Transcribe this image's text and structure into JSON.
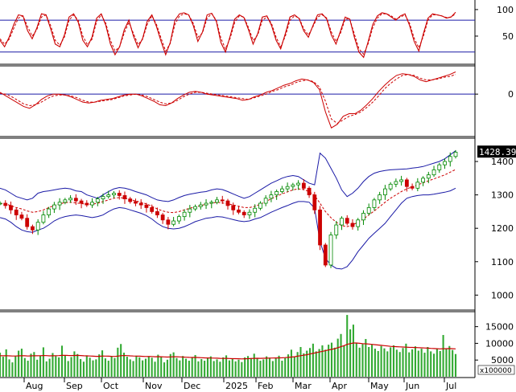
{
  "chart_data": [
    {
      "panel": "oscillator-1",
      "type": "line",
      "y_ticks": [
        "100",
        "50"
      ],
      "y_tick_values": [
        100,
        50
      ],
      "ylim": [
        0,
        115
      ],
      "reference_levels": [
        80,
        20
      ],
      "series": [
        {
          "style": "solid",
          "color": "#cc0000",
          "values": [
            42,
            30,
            48,
            72,
            90,
            88,
            60,
            45,
            65,
            92,
            90,
            64,
            35,
            30,
            52,
            86,
            92,
            76,
            42,
            30,
            48,
            84,
            92,
            70,
            35,
            15,
            30,
            62,
            80,
            50,
            28,
            46,
            78,
            90,
            68,
            40,
            15,
            38,
            80,
            92,
            94,
            90,
            70,
            40,
            58,
            90,
            93,
            78,
            38,
            20,
            50,
            82,
            90,
            85,
            62,
            35,
            55,
            86,
            88,
            70,
            42,
            26,
            55,
            86,
            90,
            83,
            60,
            48,
            70,
            90,
            92,
            82,
            52,
            35,
            60,
            86,
            82,
            48,
            20,
            10,
            40,
            72,
            88,
            94,
            92,
            86,
            80,
            88,
            92,
            70,
            40,
            22,
            55,
            84,
            92,
            90,
            88,
            84,
            86,
            95
          ]
        },
        {
          "style": "dashed",
          "color": "#cc0000",
          "values": [
            45,
            35,
            44,
            65,
            84,
            88,
            68,
            50,
            62,
            86,
            90,
            70,
            42,
            33,
            48,
            80,
            90,
            80,
            50,
            34,
            44,
            78,
            90,
            74,
            42,
            22,
            30,
            56,
            76,
            55,
            34,
            44,
            72,
            88,
            72,
            46,
            22,
            36,
            72,
            88,
            92,
            90,
            74,
            48,
            56,
            84,
            92,
            80,
            46,
            26,
            46,
            76,
            88,
            86,
            66,
            42,
            52,
            80,
            86,
            74,
            48,
            30,
            50,
            80,
            88,
            84,
            64,
            52,
            68,
            86,
            90,
            84,
            58,
            40,
            56,
            82,
            82,
            54,
            26,
            16,
            36,
            66,
            84,
            92,
            92,
            88,
            82,
            86,
            90,
            74,
            46,
            28,
            50,
            80,
            90,
            90,
            88,
            85,
            86,
            92
          ]
        }
      ]
    },
    {
      "panel": "oscillator-2",
      "type": "line",
      "y_ticks": [
        "0"
      ],
      "y_tick_values": [
        0
      ],
      "ylim": [
        -46,
        30
      ],
      "series": [
        {
          "style": "solid",
          "color": "#cc0000",
          "values": [
            2,
            -2,
            -6,
            -10,
            -14,
            -16,
            -12,
            -6,
            -2,
            0,
            0,
            -1,
            -3,
            -6,
            -9,
            -10,
            -9,
            -7,
            -6,
            -5,
            -3,
            -1,
            0,
            0,
            -2,
            -5,
            -8,
            -12,
            -13,
            -10,
            -5,
            -1,
            2,
            3,
            2,
            0,
            -1,
            -2,
            -3,
            -4,
            -5,
            -7,
            -6,
            -3,
            -1,
            2,
            4,
            7,
            10,
            12,
            15,
            17,
            16,
            13,
            5,
            -20,
            -38,
            -34,
            -25,
            -22,
            -22,
            -18,
            -12,
            -5,
            3,
            10,
            16,
            21,
            23,
            22,
            20,
            16,
            14,
            16,
            18,
            20,
            22,
            25
          ]
        },
        {
          "style": "dashed",
          "color": "#cc0000",
          "values": [
            1,
            0,
            -3,
            -7,
            -11,
            -13,
            -12,
            -9,
            -5,
            -2,
            -1,
            -1,
            -2,
            -4,
            -7,
            -9,
            -9,
            -8,
            -7,
            -6,
            -4,
            -2,
            -1,
            0,
            -1,
            -3,
            -6,
            -9,
            -11,
            -10,
            -7,
            -3,
            0,
            2,
            2,
            1,
            0,
            -1,
            -2,
            -3,
            -4,
            -5,
            -6,
            -4,
            -2,
            0,
            3,
            5,
            8,
            10,
            13,
            15,
            16,
            14,
            8,
            -8,
            -28,
            -33,
            -29,
            -25,
            -23,
            -20,
            -15,
            -9,
            -2,
            6,
            12,
            17,
            21,
            22,
            21,
            18,
            16,
            16,
            17,
            19,
            20,
            22
          ]
        }
      ]
    },
    {
      "panel": "price",
      "type": "candlestick",
      "y_ticks": [
        "1400",
        "1300",
        "1200",
        "1100",
        "1000"
      ],
      "y_tick_values": [
        1400,
        1300,
        1200,
        1100,
        1000
      ],
      "ylim": [
        960,
        1465
      ],
      "last_value_label": "1428.390",
      "last_value": 1428.39,
      "x_ticks": [
        "Aug",
        "Sep",
        "Oct",
        "Nov",
        "Dec",
        "2025",
        "Feb",
        "Mar",
        "Apr",
        "May",
        "Jun",
        "Jul"
      ],
      "candles_close": [
        1275,
        1268,
        1255,
        1240,
        1230,
        1205,
        1195,
        1218,
        1240,
        1258,
        1270,
        1278,
        1285,
        1290,
        1282,
        1275,
        1270,
        1278,
        1288,
        1295,
        1300,
        1305,
        1298,
        1288,
        1280,
        1275,
        1270,
        1262,
        1250,
        1240,
        1225,
        1212,
        1222,
        1235,
        1248,
        1258,
        1265,
        1270,
        1275,
        1278,
        1285,
        1282,
        1268,
        1255,
        1248,
        1240,
        1248,
        1260,
        1275,
        1290,
        1300,
        1310,
        1318,
        1325,
        1330,
        1335,
        1320,
        1300,
        1255,
        1150,
        1090,
        1180,
        1210,
        1230,
        1215,
        1205,
        1225,
        1245,
        1262,
        1285,
        1300,
        1318,
        1332,
        1340,
        1345,
        1325,
        1320,
        1338,
        1350,
        1360,
        1375,
        1390,
        1400,
        1415,
        1428
      ],
      "bollinger": {
        "upper": [
          1320,
          1315,
          1305,
          1295,
          1290,
          1285,
          1290,
          1305,
          1310,
          1312,
          1315,
          1318,
          1320,
          1318,
          1312,
          1310,
          1300,
          1295,
          1290,
          1300,
          1310,
          1318,
          1322,
          1320,
          1316,
          1310,
          1305,
          1300,
          1292,
          1285,
          1282,
          1280,
          1285,
          1292,
          1298,
          1302,
          1305,
          1308,
          1310,
          1315,
          1318,
          1316,
          1310,
          1303,
          1296,
          1290,
          1295,
          1305,
          1315,
          1325,
          1335,
          1342,
          1350,
          1355,
          1358,
          1355,
          1345,
          1335,
          1330,
          1425,
          1410,
          1380,
          1350,
          1315,
          1295,
          1305,
          1320,
          1340,
          1355,
          1365,
          1370,
          1373,
          1375,
          1376,
          1377,
          1378,
          1380,
          1382,
          1385,
          1390,
          1395,
          1400,
          1408,
          1420,
          1432
        ],
        "middle": [
          1275,
          1273,
          1268,
          1262,
          1258,
          1252,
          1248,
          1250,
          1255,
          1262,
          1268,
          1273,
          1277,
          1278,
          1276,
          1274,
          1272,
          1272,
          1275,
          1280,
          1285,
          1290,
          1292,
          1290,
          1286,
          1282,
          1278,
          1273,
          1266,
          1258,
          1252,
          1248,
          1247,
          1250,
          1255,
          1260,
          1264,
          1268,
          1272,
          1275,
          1278,
          1276,
          1273,
          1270,
          1266,
          1262,
          1262,
          1266,
          1272,
          1280,
          1288,
          1296,
          1303,
          1309,
          1315,
          1318,
          1316,
          1310,
          1298,
          1275,
          1250,
          1232,
          1218,
          1208,
          1205,
          1210,
          1218,
          1228,
          1240,
          1252,
          1265,
          1278,
          1290,
          1300,
          1310,
          1318,
          1324,
          1330,
          1336,
          1342,
          1348,
          1354,
          1360,
          1368,
          1376
        ],
        "lower": [
          1232,
          1228,
          1218,
          1205,
          1195,
          1190,
          1188,
          1195,
          1200,
          1210,
          1222,
          1230,
          1235,
          1238,
          1240,
          1238,
          1235,
          1232,
          1235,
          1240,
          1250,
          1258,
          1262,
          1260,
          1255,
          1250,
          1245,
          1238,
          1228,
          1215,
          1205,
          1200,
          1198,
          1200,
          1205,
          1212,
          1220,
          1225,
          1230,
          1232,
          1235,
          1234,
          1230,
          1226,
          1222,
          1220,
          1222,
          1228,
          1232,
          1240,
          1248,
          1255,
          1262,
          1268,
          1275,
          1280,
          1280,
          1278,
          1260,
          1160,
          1110,
          1090,
          1080,
          1078,
          1085,
          1105,
          1130,
          1150,
          1170,
          1185,
          1200,
          1215,
          1235,
          1255,
          1275,
          1290,
          1295,
          1298,
          1300,
          1300,
          1302,
          1305,
          1308,
          1312,
          1320
        ]
      }
    },
    {
      "panel": "volume",
      "type": "bar",
      "y_ticks": [
        "15000",
        "10000",
        "5000"
      ],
      "y_tick_values": [
        15000,
        10000,
        5000
      ],
      "ylim": [
        0,
        19000
      ],
      "unit_label": "x100000",
      "moving_average_color": "#cc0000",
      "bar_color": "#33aa33",
      "values": [
        7200,
        6000,
        8200,
        5200,
        4300,
        6100,
        7800,
        8400,
        5600,
        4800,
        6900,
        7400,
        5100,
        6300,
        8800,
        4600,
        5400,
        7100,
        6200,
        5800,
        9300,
        6500,
        4700,
        5900,
        7600,
        6800,
        5300,
        4500,
        6400,
        5700,
        4900,
        5200,
        6700,
        7900,
        5500,
        4800,
        6100,
        5600,
        8700,
        9800,
        7200,
        6000,
        5200,
        4700,
        6300,
        5800,
        4900,
        5400,
        6100,
        5700,
        4500,
        6600,
        5900,
        4300,
        5100,
        6800,
        7300,
        5600,
        4900,
        6200,
        5400,
        4800,
        5900,
        6500,
        4600,
        5300,
        4800,
        5600,
        6100,
        4700,
        5200,
        4500,
        5800,
        6400,
        4900,
        5300,
        4600,
        5100,
        4400,
        5800,
        6200,
        5600,
        6900,
        5400,
        4800,
        5200,
        6100,
        5700,
        4700,
        5500,
        6300,
        4800,
        5600,
        6700,
        8100,
        6000,
        7400,
        8900,
        7000,
        7800,
        8600,
        9900,
        7600,
        8300,
        9400,
        8100,
        9600,
        10200,
        8700,
        11400,
        12800,
        9300,
        18500,
        14200,
        15600,
        10200,
        8700,
        9800,
        11300,
        8900,
        9600,
        8400,
        7700,
        9200,
        8500,
        7600,
        8800,
        9400,
        8100,
        7400,
        8600,
        9900,
        7300,
        8200,
        9100,
        7800,
        8400,
        7200,
        8900,
        7600,
        6900,
        8300,
        7700,
        12500,
        8400,
        9200,
        8000,
        6800
      ],
      "moving_average": [
        6300,
        6280,
        6300,
        6250,
        6200,
        6200,
        6250,
        6300,
        6280,
        6200,
        6250,
        6300,
        6280,
        6300,
        6350,
        6320,
        6250,
        6280,
        6300,
        6320,
        6400,
        6420,
        6380,
        6350,
        6380,
        6400,
        6350,
        6280,
        6250,
        6200,
        6150,
        6100,
        6120,
        6200,
        6180,
        6150,
        6100,
        6080,
        6150,
        6300,
        6350,
        6320,
        6250,
        6200,
        6180,
        6150,
        6100,
        6050,
        6080,
        6050,
        6000,
        6020,
        6000,
        5950,
        5900,
        5950,
        6000,
        5980,
        5950,
        5900,
        5850,
        5800,
        5780,
        5800,
        5750,
        5700,
        5650,
        5620,
        5600,
        5580,
        5550,
        5500,
        5480,
        5500,
        5450,
        5420,
        5400,
        5380,
        5350,
        5380,
        5420,
        5450,
        5500,
        5520,
        5500,
        5520,
        5550,
        5580,
        5600,
        5620,
        5650,
        5680,
        5720,
        5800,
        5900,
        6000,
        6150,
        6300,
        6450,
        6600,
        6800,
        7000,
        7200,
        7400,
        7600,
        7800,
        8000,
        8200,
        8400,
        8700,
        9000,
        9300,
        9700,
        9900,
        10100,
        10100,
        10000,
        9900,
        9850,
        9800,
        9700,
        9600,
        9500,
        9400,
        9300,
        9200,
        9100,
        9050,
        9000,
        8950,
        8900,
        8850,
        8800,
        8780,
        8750,
        8700,
        8650,
        8600,
        8550,
        8500,
        8450,
        8400,
        8350,
        8400,
        8400,
        8450,
        8400,
        8350
      ]
    }
  ]
}
